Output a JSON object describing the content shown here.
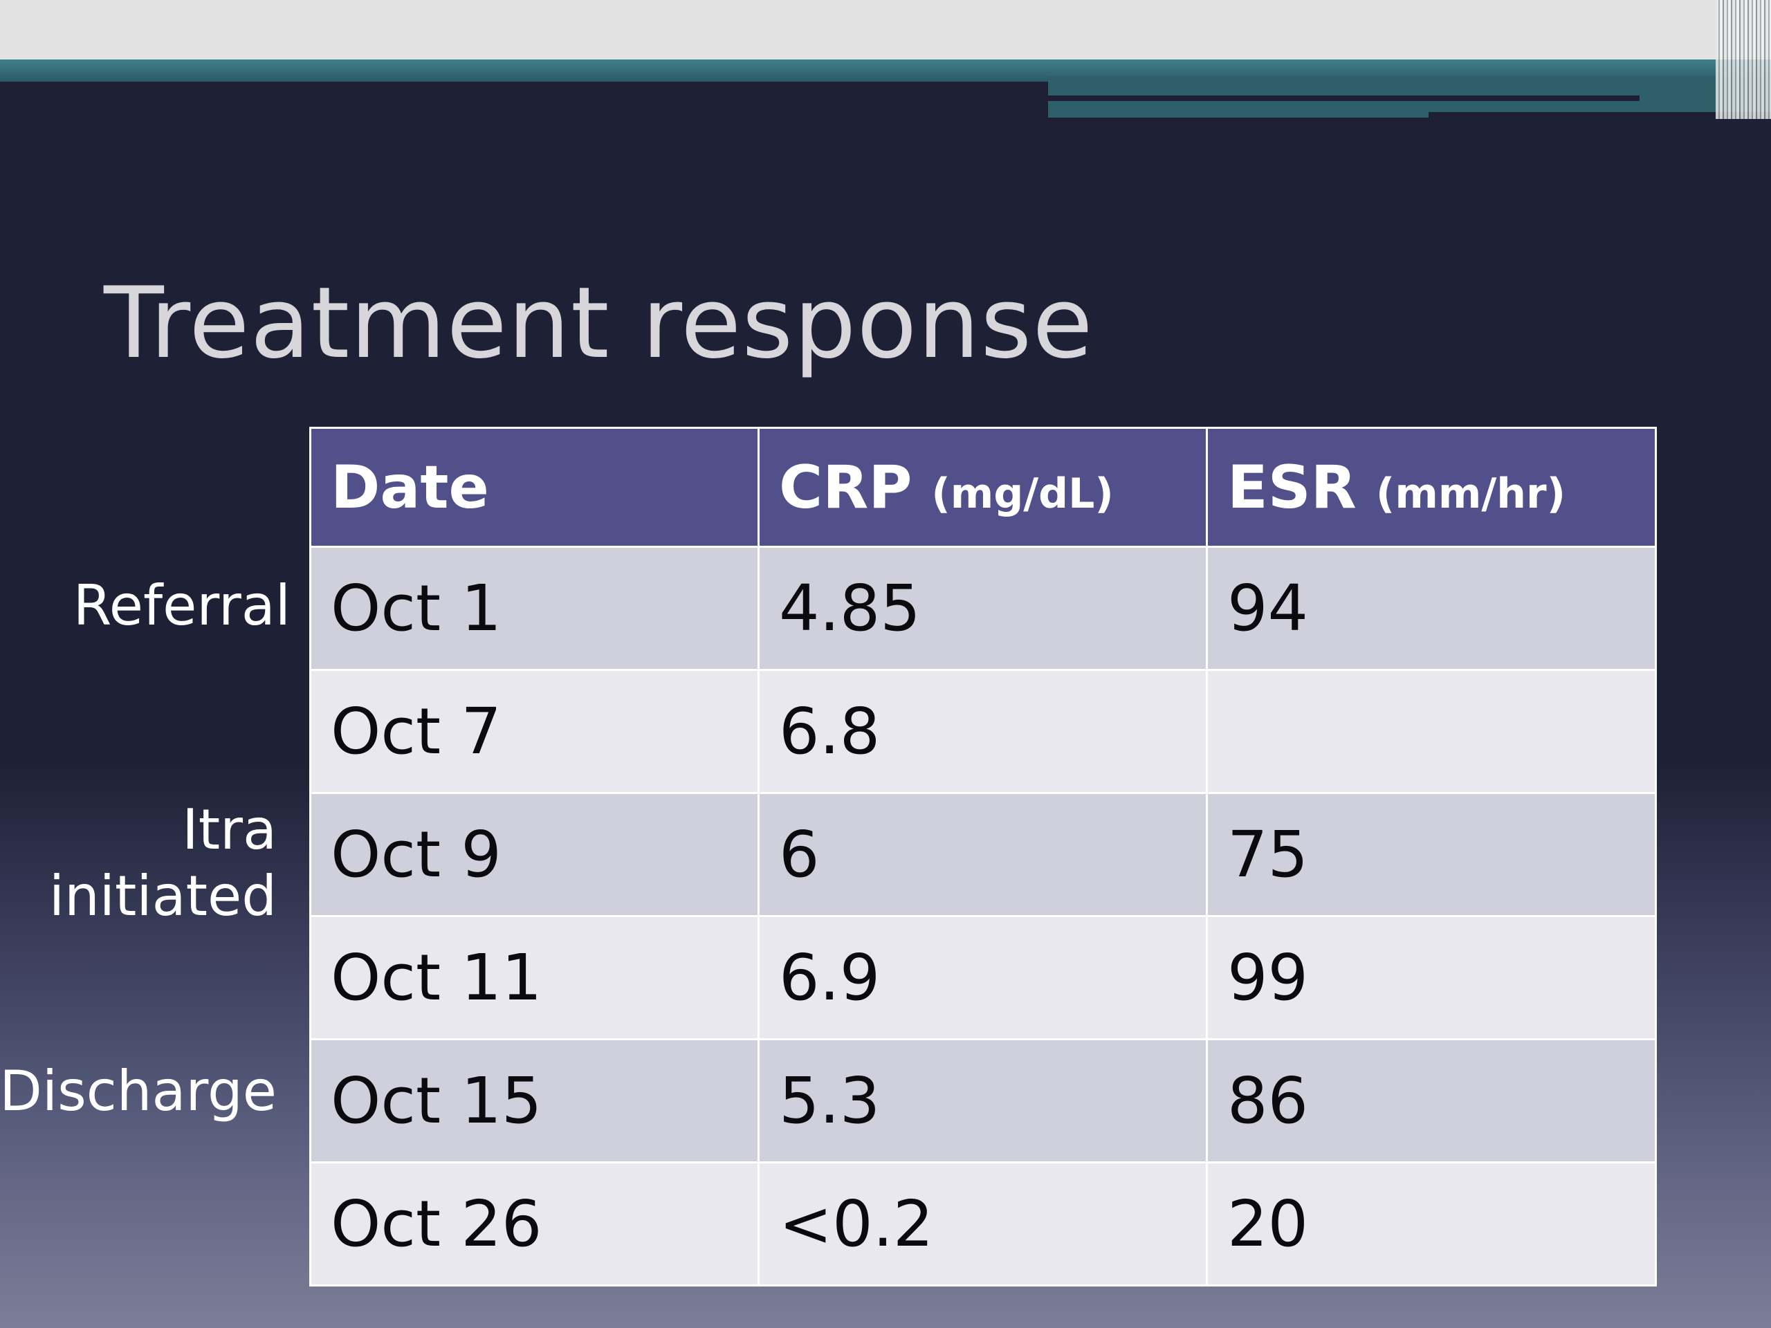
{
  "slide": {
    "title": "Treatment response",
    "table": {
      "headers": [
        {
          "label": "Date",
          "unit": ""
        },
        {
          "label": "CRP",
          "unit": "(mg/dL)"
        },
        {
          "label": "ESR",
          "unit": "(mm/hr)"
        }
      ],
      "rows": [
        {
          "date": "Oct 1",
          "crp": "4.85",
          "esr": "94"
        },
        {
          "date": "Oct 7",
          "crp": "6.8",
          "esr": ""
        },
        {
          "date": "Oct 9",
          "crp": "6",
          "esr": "75"
        },
        {
          "date": "Oct 11",
          "crp": "6.9",
          "esr": "99"
        },
        {
          "date": "Oct 15",
          "crp": "5.3",
          "esr": "86"
        },
        {
          "date": "Oct 26",
          "crp": "<0.2",
          "esr": "20"
        }
      ]
    },
    "side_labels": {
      "referral": "Referral",
      "itra_line1": "Itra",
      "itra_line2": "initiated",
      "discharge": "Discharge"
    },
    "colors": {
      "background": "#1e2035",
      "header": "#51508a",
      "row_dark": "#d0d0dc",
      "row_light": "#e8e8ee",
      "accent": "#3f8088"
    }
  }
}
